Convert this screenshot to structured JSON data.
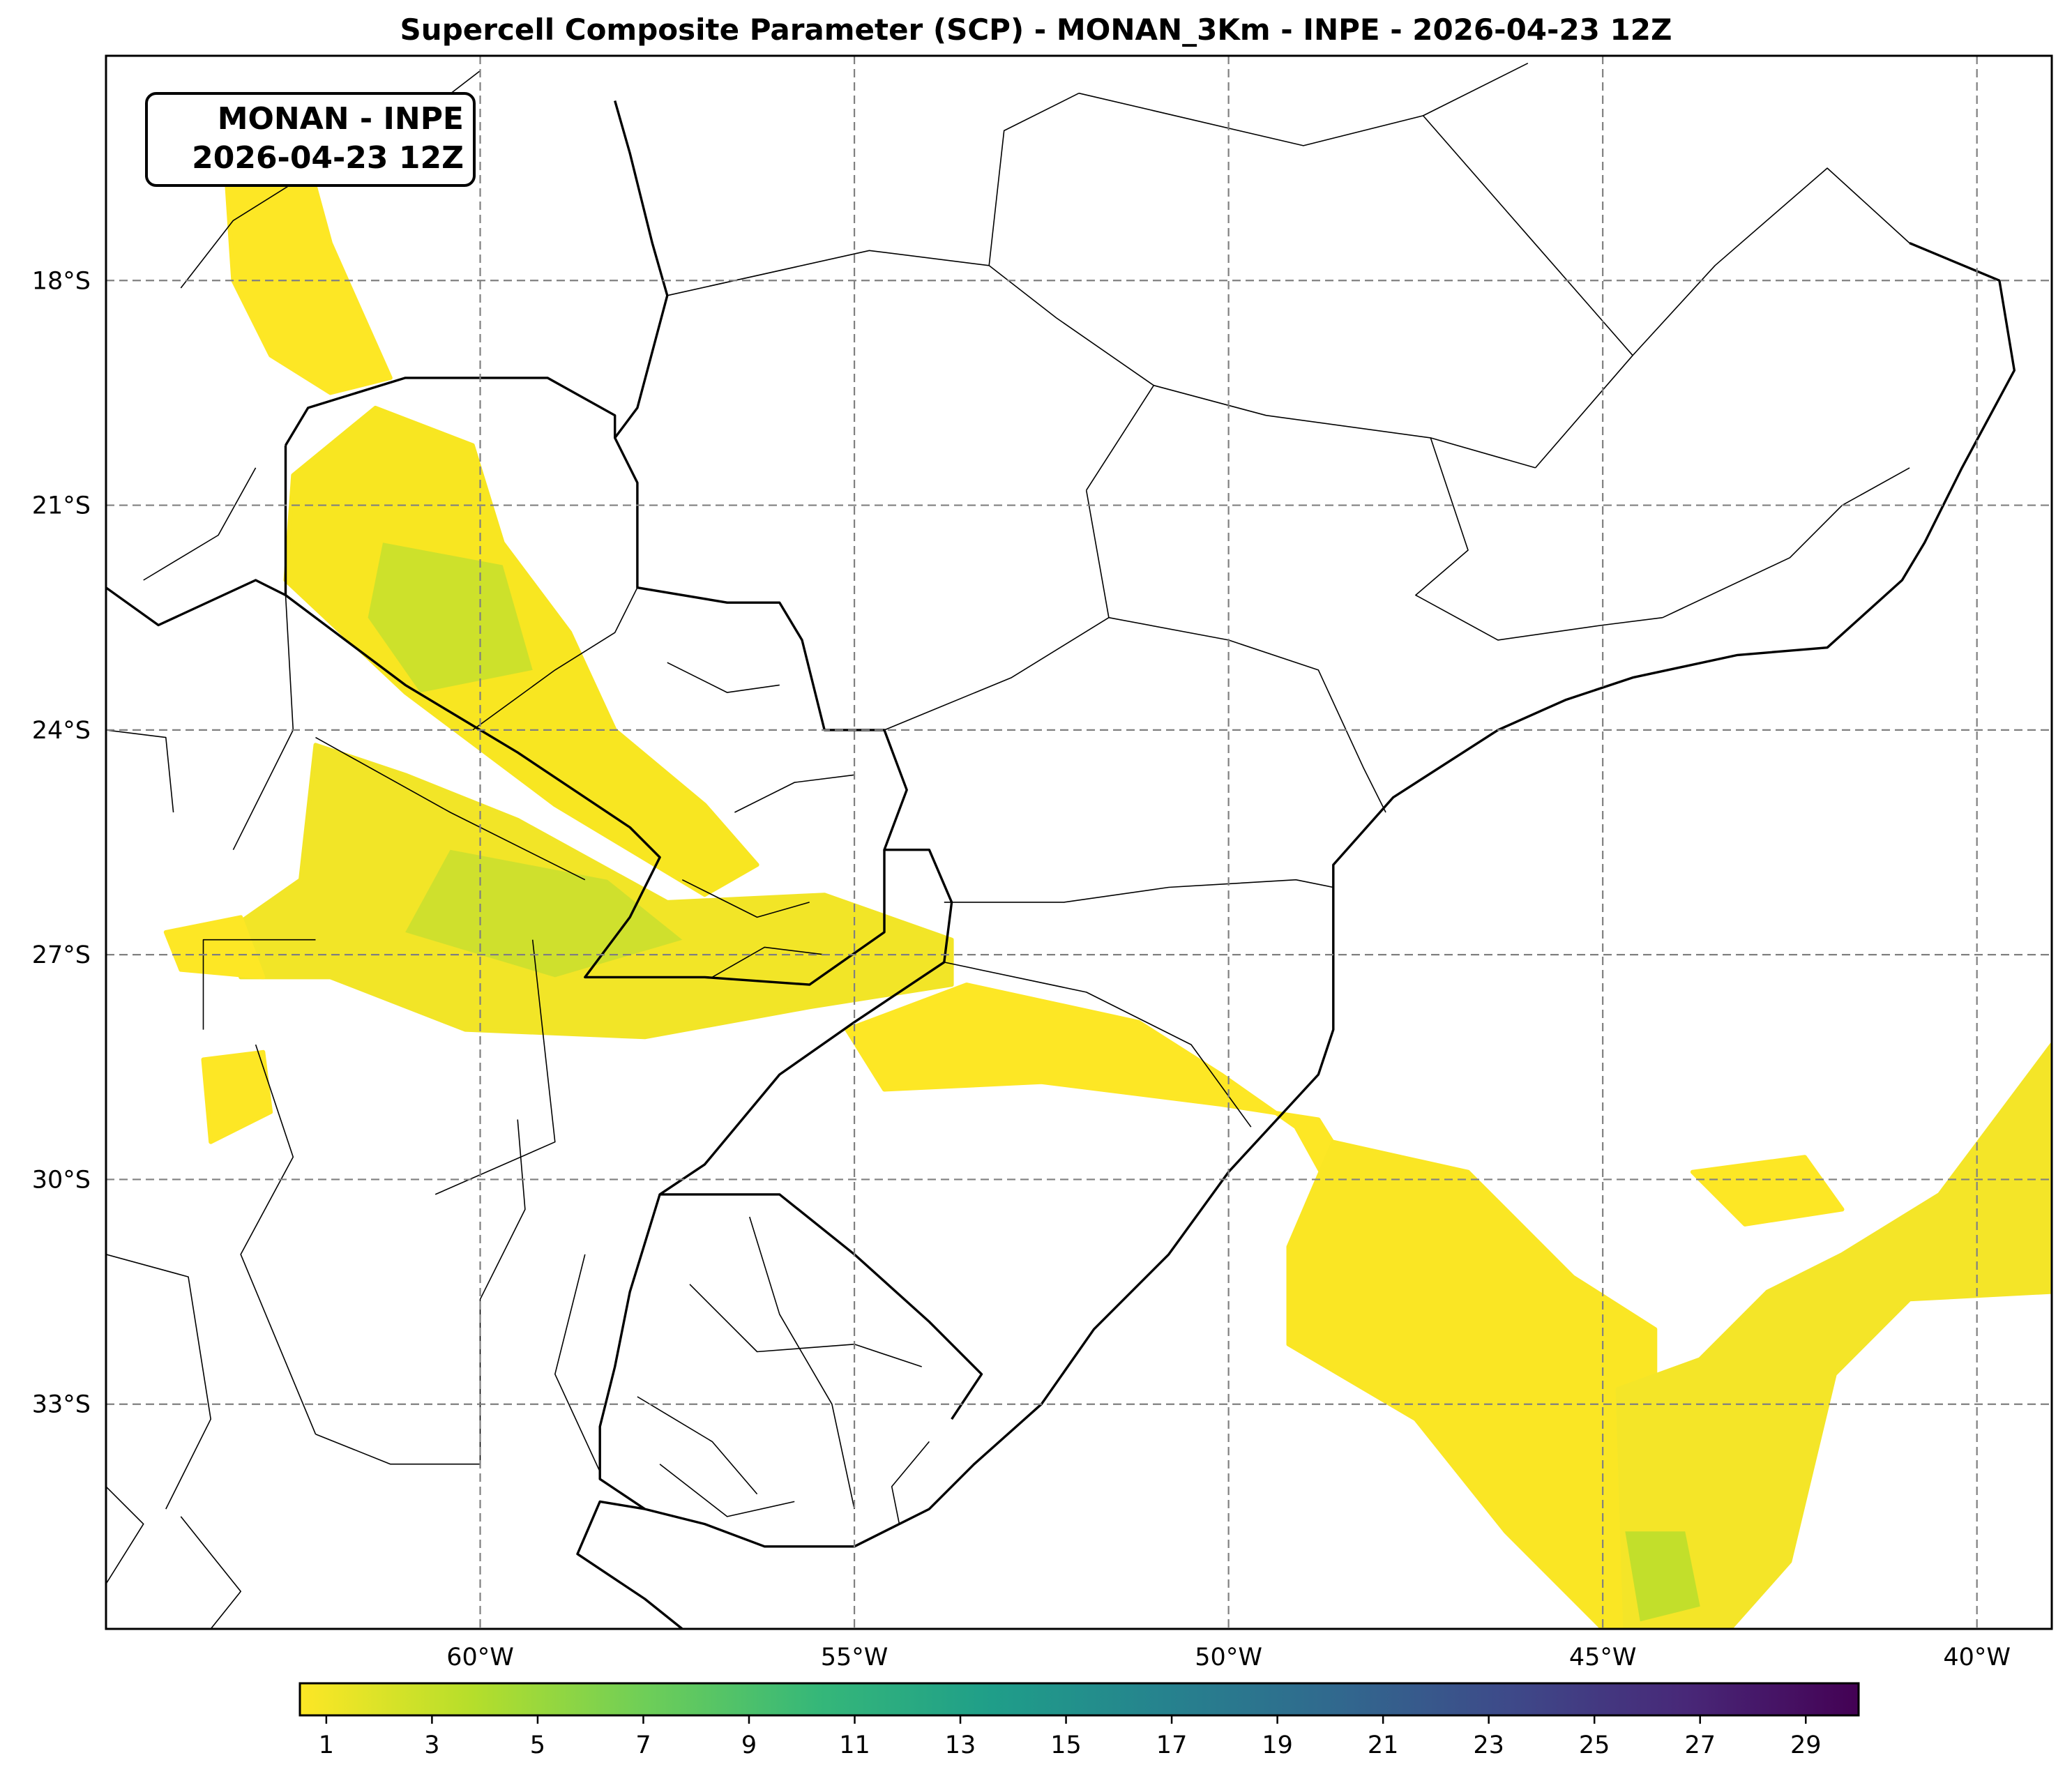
{
  "title": "Supercell Composite Parameter (SCP) - MONAN_3Km - INPE - 2026-04-23 12Z",
  "info_box": {
    "line1": "MONAN - INPE",
    "line2": "2026-04-23 12Z"
  },
  "map": {
    "projection": "plate-carree",
    "lon_range": [
      -65,
      -39
    ],
    "lat_range": [
      -36,
      -15
    ],
    "gridlines": "dashed",
    "lon_ticks": [
      {
        "value": -60,
        "label": "60°W"
      },
      {
        "value": -55,
        "label": "55°W"
      },
      {
        "value": -50,
        "label": "50°W"
      },
      {
        "value": -45,
        "label": "45°W"
      },
      {
        "value": -40,
        "label": "40°W"
      }
    ],
    "lat_ticks": [
      {
        "value": -18,
        "label": "18°S"
      },
      {
        "value": -21,
        "label": "21°S"
      },
      {
        "value": -24,
        "label": "24°S"
      },
      {
        "value": -27,
        "label": "27°S"
      },
      {
        "value": -30,
        "label": "30°S"
      },
      {
        "value": -33,
        "label": "33°S"
      }
    ]
  },
  "colorbar": {
    "colormap": "viridis_r",
    "min": 0.5,
    "max": 30,
    "colors": [
      "#fde725",
      "#b5de2b",
      "#6ece58",
      "#35b779",
      "#1f9e89",
      "#26828e",
      "#31688e",
      "#3e4989",
      "#482878",
      "#440154"
    ],
    "ticks": [
      "1",
      "3",
      "5",
      "7",
      "9",
      "11",
      "13",
      "15",
      "17",
      "19",
      "21",
      "23",
      "25",
      "27",
      "29"
    ]
  },
  "scp_regions": [
    {
      "name": "chaco-north",
      "color": "#fde725",
      "points": [
        [
          -63.4,
          -16.5
        ],
        [
          -62.3,
          -16.4
        ],
        [
          -62.0,
          -17.5
        ],
        [
          -61.6,
          -18.4
        ],
        [
          -61.2,
          -19.3
        ],
        [
          -62.0,
          -19.5
        ],
        [
          -62.8,
          -19.0
        ],
        [
          -63.3,
          -18.0
        ]
      ]
    },
    {
      "name": "paraguay-northwest",
      "color": "#f8e621",
      "points": [
        [
          -61.4,
          -19.7
        ],
        [
          -60.1,
          -20.2
        ],
        [
          -59.7,
          -21.5
        ],
        [
          -58.8,
          -22.7
        ],
        [
          -58.2,
          -24.0
        ],
        [
          -57.0,
          -25.0
        ],
        [
          -56.3,
          -25.8
        ],
        [
          -57.0,
          -26.2
        ],
        [
          -59.0,
          -25.0
        ],
        [
          -61.0,
          -23.5
        ],
        [
          -62.6,
          -22.0
        ],
        [
          -62.5,
          -20.6
        ]
      ]
    },
    {
      "name": "argentina-northeast",
      "color": "#f2e527",
      "points": [
        [
          -62.2,
          -24.2
        ],
        [
          -61.0,
          -24.6
        ],
        [
          -59.5,
          -25.2
        ],
        [
          -57.5,
          -26.3
        ],
        [
          -55.4,
          -26.2
        ],
        [
          -53.7,
          -26.8
        ],
        [
          -53.7,
          -27.4
        ],
        [
          -55.6,
          -27.7
        ],
        [
          -57.8,
          -28.1
        ],
        [
          -60.2,
          -28.0
        ],
        [
          -62.0,
          -27.3
        ],
        [
          -63.2,
          -27.3
        ],
        [
          -63.4,
          -26.7
        ],
        [
          -62.4,
          -26.0
        ]
      ]
    },
    {
      "name": "rio-grande-do-sul-north",
      "color": "#fde725",
      "points": [
        [
          -55.1,
          -28.0
        ],
        [
          -53.5,
          -27.4
        ],
        [
          -51.2,
          -27.9
        ],
        [
          -50.1,
          -28.6
        ],
        [
          -49.1,
          -29.3
        ],
        [
          -48.6,
          -30.2
        ],
        [
          -47.8,
          -30.8
        ],
        [
          -48.8,
          -29.2
        ],
        [
          -50.1,
          -29.0
        ],
        [
          -52.5,
          -28.7
        ],
        [
          -54.6,
          -28.8
        ]
      ]
    },
    {
      "name": "atlantic-southwest-band",
      "color": "#fae624",
      "points": [
        [
          -48.6,
          -29.5
        ],
        [
          -46.8,
          -29.9
        ],
        [
          -45.4,
          -31.3
        ],
        [
          -44.3,
          -32.0
        ],
        [
          -44.3,
          -34.3
        ],
        [
          -44.0,
          -36.0
        ],
        [
          -45.0,
          -36.0
        ],
        [
          -46.3,
          -34.7
        ],
        [
          -47.5,
          -33.2
        ],
        [
          -49.2,
          -32.2
        ],
        [
          -49.2,
          -30.9
        ]
      ]
    },
    {
      "name": "atlantic-offshore-core",
      "color": "#f4e528",
      "points": [
        [
          -44.8,
          -32.8
        ],
        [
          -43.7,
          -32.4
        ],
        [
          -42.8,
          -31.5
        ],
        [
          -41.8,
          -31.0
        ],
        [
          -40.5,
          -30.2
        ],
        [
          -39.0,
          -28.2
        ],
        [
          -39.0,
          -31.5
        ],
        [
          -40.9,
          -31.6
        ],
        [
          -41.9,
          -32.6
        ],
        [
          -42.5,
          -35.1
        ],
        [
          -43.3,
          -36.0
        ],
        [
          -44.7,
          -36.0
        ]
      ]
    },
    {
      "name": "atlantic-east-cells",
      "color": "#fde725",
      "points": [
        [
          -43.8,
          -29.9
        ],
        [
          -42.3,
          -29.7
        ],
        [
          -41.8,
          -30.4
        ],
        [
          -43.1,
          -30.6
        ]
      ]
    },
    {
      "name": "argentina-chaco-south",
      "color": "#fde725",
      "points": [
        [
          -63.7,
          -28.4
        ],
        [
          -62.9,
          -28.3
        ],
        [
          -62.8,
          -29.1
        ],
        [
          -63.6,
          -29.5
        ]
      ]
    },
    {
      "name": "argentina-chaco-west",
      "color": "#fde725",
      "points": [
        [
          -64.2,
          -26.7
        ],
        [
          -63.2,
          -26.5
        ],
        [
          -62.9,
          -27.3
        ],
        [
          -64.0,
          -27.2
        ]
      ]
    }
  ],
  "scp_hotspots": [
    {
      "name": "paraguay-core",
      "color": "#c5df2d",
      "points": [
        [
          -61.3,
          -21.5
        ],
        [
          -59.7,
          -21.8
        ],
        [
          -59.3,
          -23.2
        ],
        [
          -60.8,
          -23.5
        ],
        [
          -61.5,
          -22.5
        ]
      ]
    },
    {
      "name": "chaco-core",
      "color": "#c9df2f",
      "points": [
        [
          -60.4,
          -25.6
        ],
        [
          -58.3,
          -26.0
        ],
        [
          -57.3,
          -26.8
        ],
        [
          -59.0,
          -27.3
        ],
        [
          -61.0,
          -26.7
        ]
      ]
    },
    {
      "name": "ocean-core",
      "color": "#b8de2c",
      "points": [
        [
          -44.7,
          -34.7
        ],
        [
          -43.9,
          -34.7
        ],
        [
          -43.7,
          -35.7
        ],
        [
          -44.5,
          -35.9
        ]
      ]
    }
  ],
  "boundaries": {
    "coast_brazil": [
      [
        -40.9,
        -17.5
      ],
      [
        -39.7,
        -18.0
      ],
      [
        -39.5,
        -19.2
      ],
      [
        -40.2,
        -20.5
      ],
      [
        -40.7,
        -21.5
      ],
      [
        -41.0,
        -22.0
      ],
      [
        -42.0,
        -22.9
      ],
      [
        -43.2,
        -23.0
      ],
      [
        -44.6,
        -23.3
      ],
      [
        -45.5,
        -23.6
      ],
      [
        -46.4,
        -24.0
      ],
      [
        -47.8,
        -24.9
      ],
      [
        -48.6,
        -25.8
      ],
      [
        -48.6,
        -26.8
      ],
      [
        -48.6,
        -28.0
      ],
      [
        -48.8,
        -28.6
      ],
      [
        -50.0,
        -29.9
      ],
      [
        -50.8,
        -31.0
      ],
      [
        -51.8,
        -32.0
      ],
      [
        -52.5,
        -33.0
      ],
      [
        -53.4,
        -33.8
      ],
      [
        -54.0,
        -34.4
      ],
      [
        -55.0,
        -34.9
      ],
      [
        -56.2,
        -34.9
      ],
      [
        -57.0,
        -34.6
      ],
      [
        -57.8,
        -34.4
      ],
      [
        -58.4,
        -34.3
      ],
      [
        -58.7,
        -35.0
      ],
      [
        -57.8,
        -35.6
      ],
      [
        -57.3,
        -36.0
      ]
    ],
    "brazil_border": [
      [
        -58.2,
        -15.6
      ],
      [
        -58.0,
        -16.3
      ],
      [
        -57.7,
        -17.5
      ],
      [
        -57.5,
        -18.2
      ],
      [
        -57.9,
        -19.7
      ],
      [
        -58.2,
        -20.1
      ],
      [
        -57.9,
        -20.7
      ],
      [
        -57.9,
        -21.5
      ],
      [
        -57.9,
        -22.1
      ],
      [
        -56.7,
        -22.3
      ],
      [
        -56.0,
        -22.3
      ],
      [
        -55.7,
        -22.8
      ],
      [
        -55.4,
        -24.0
      ],
      [
        -54.6,
        -24.0
      ],
      [
        -54.3,
        -24.8
      ],
      [
        -54.6,
        -25.6
      ],
      [
        -54.0,
        -25.6
      ],
      [
        -53.7,
        -26.3
      ],
      [
        -53.8,
        -27.1
      ],
      [
        -55.0,
        -27.9
      ],
      [
        -56.0,
        -28.6
      ],
      [
        -57.0,
        -29.8
      ],
      [
        -57.6,
        -30.2
      ],
      [
        -56.0,
        -30.2
      ],
      [
        -55.0,
        -31.0
      ],
      [
        -54.0,
        -31.9
      ],
      [
        -53.3,
        -32.6
      ],
      [
        -53.7,
        -33.2
      ]
    ],
    "bolivia_paraguay": [
      [
        -62.6,
        -20.2
      ],
      [
        -62.3,
        -19.7
      ],
      [
        -61.0,
        -19.3
      ],
      [
        -59.1,
        -19.3
      ],
      [
        -58.2,
        -19.8
      ],
      [
        -58.2,
        -20.1
      ]
    ],
    "paraguay_argentina": [
      [
        -62.6,
        -22.2
      ],
      [
        -61.0,
        -23.4
      ],
      [
        -59.5,
        -24.3
      ],
      [
        -58.0,
        -25.3
      ],
      [
        -57.6,
        -25.7
      ],
      [
        -58.0,
        -26.5
      ],
      [
        -58.6,
        -27.3
      ],
      [
        -57.0,
        -27.3
      ],
      [
        -55.6,
        -27.4
      ],
      [
        -54.6,
        -26.7
      ],
      [
        -54.6,
        -25.6
      ]
    ],
    "bolivia_argentina": [
      [
        -65.0,
        -22.1
      ],
      [
        -64.3,
        -22.6
      ],
      [
        -63.0,
        -22.0
      ],
      [
        -62.6,
        -22.2
      ],
      [
        -62.6,
        -20.2
      ]
    ],
    "uruguay_argentina": [
      [
        -57.6,
        -30.2
      ],
      [
        -58.0,
        -31.5
      ],
      [
        -58.2,
        -32.5
      ],
      [
        -58.4,
        -33.3
      ],
      [
        -58.4,
        -34.0
      ],
      [
        -57.8,
        -34.4
      ]
    ],
    "state_lines": [
      [
        [
          -57.5,
          -18.2
        ],
        [
          -54.8,
          -17.6
        ],
        [
          -53.2,
          -17.8
        ],
        [
          -52.3,
          -18.5
        ],
        [
          -51.0,
          -19.4
        ],
        [
          -51.9,
          -20.8
        ]
      ],
      [
        [
          -53.2,
          -17.8
        ],
        [
          -53.0,
          -16.0
        ],
        [
          -52.0,
          -15.5
        ]
      ],
      [
        [
          -51.0,
          -19.4
        ],
        [
          -49.5,
          -19.8
        ],
        [
          -47.3,
          -20.1
        ],
        [
          -45.9,
          -20.5
        ]
      ],
      [
        [
          -51.9,
          -20.8
        ],
        [
          -51.6,
          -22.5
        ],
        [
          -52.9,
          -23.3
        ],
        [
          -54.6,
          -24.0
        ]
      ],
      [
        [
          -51.6,
          -22.5
        ],
        [
          -50.0,
          -22.8
        ],
        [
          -48.8,
          -23.2
        ],
        [
          -48.2,
          -24.5
        ],
        [
          -47.9,
          -25.1
        ]
      ],
      [
        [
          -53.8,
          -26.3
        ],
        [
          -52.2,
          -26.3
        ],
        [
          -50.8,
          -26.1
        ],
        [
          -49.1,
          -26.0
        ],
        [
          -48.6,
          -26.1
        ]
      ],
      [
        [
          -53.8,
          -27.1
        ],
        [
          -51.9,
          -27.5
        ],
        [
          -50.5,
          -28.2
        ],
        [
          -49.7,
          -29.3
        ]
      ],
      [
        [
          -47.3,
          -20.1
        ],
        [
          -46.8,
          -21.6
        ],
        [
          -47.5,
          -22.2
        ],
        [
          -46.4,
          -22.8
        ],
        [
          -45.0,
          -22.6
        ],
        [
          -44.2,
          -22.5
        ]
      ],
      [
        [
          -44.2,
          -22.5
        ],
        [
          -42.5,
          -21.7
        ],
        [
          -41.8,
          -21.0
        ],
        [
          -40.9,
          -20.5
        ]
      ],
      [
        [
          -45.9,
          -20.5
        ],
        [
          -44.6,
          -19.0
        ],
        [
          -43.5,
          -17.8
        ],
        [
          -42.0,
          -16.5
        ],
        [
          -40.9,
          -17.5
        ]
      ],
      [
        [
          -44.6,
          -19.0
        ],
        [
          -46.0,
          -17.4
        ],
        [
          -47.4,
          -15.8
        ]
      ],
      [
        [
          -52.0,
          -15.5
        ],
        [
          -49.0,
          -16.2
        ],
        [
          -47.4,
          -15.8
        ],
        [
          -46.0,
          -15.1
        ]
      ],
      [
        [
          -60.0,
          -15.2
        ],
        [
          -61.3,
          -16.2
        ],
        [
          -62.1,
          -16.6
        ]
      ],
      [
        [
          -63.0,
          -20.5
        ],
        [
          -63.5,
          -21.4
        ],
        [
          -64.5,
          -22.0
        ]
      ],
      [
        [
          -62.6,
          -22.2
        ],
        [
          -62.5,
          -24.0
        ],
        [
          -63.3,
          -25.6
        ]
      ],
      [
        [
          -62.2,
          -24.1
        ],
        [
          -60.4,
          -25.1
        ],
        [
          -58.6,
          -26.0
        ]
      ],
      [
        [
          -60.1,
          -24.0
        ],
        [
          -59.0,
          -23.2
        ],
        [
          -58.2,
          -22.7
        ],
        [
          -57.9,
          -22.1
        ]
      ],
      [
        [
          -59.3,
          -26.8
        ],
        [
          -59.0,
          -29.5
        ],
        [
          -60.6,
          -30.2
        ]
      ],
      [
        [
          -62.2,
          -26.8
        ],
        [
          -63.7,
          -26.8
        ],
        [
          -63.7,
          -28.0
        ]
      ],
      [
        [
          -63.0,
          -28.2
        ],
        [
          -62.5,
          -29.7
        ],
        [
          -63.2,
          -31.0
        ],
        [
          -62.2,
          -33.4
        ]
      ],
      [
        [
          -59.5,
          -29.2
        ],
        [
          -59.4,
          -30.4
        ],
        [
          -60.0,
          -31.6
        ],
        [
          -60.0,
          -33.8
        ]
      ],
      [
        [
          -58.6,
          -31.0
        ],
        [
          -59.0,
          -32.6
        ],
        [
          -58.4,
          -33.9
        ]
      ],
      [
        [
          -64.0,
          -34.5
        ],
        [
          -63.6,
          -35.0
        ],
        [
          -63.2,
          -35.5
        ],
        [
          -63.6,
          -36.0
        ]
      ],
      [
        [
          -62.2,
          -33.4
        ],
        [
          -61.2,
          -33.8
        ],
        [
          -60.0,
          -33.8
        ]
      ],
      [
        [
          -56.4,
          -30.5
        ],
        [
          -56.0,
          -31.8
        ],
        [
          -55.3,
          -33.0
        ],
        [
          -55.0,
          -34.4
        ]
      ],
      [
        [
          -57.2,
          -31.4
        ],
        [
          -56.3,
          -32.3
        ],
        [
          -55.0,
          -32.2
        ],
        [
          -54.1,
          -32.5
        ]
      ],
      [
        [
          -57.9,
          -32.9
        ],
        [
          -56.9,
          -33.5
        ],
        [
          -56.3,
          -34.2
        ]
      ],
      [
        [
          -57.6,
          -33.8
        ],
        [
          -56.7,
          -34.5
        ],
        [
          -55.8,
          -34.3
        ]
      ],
      [
        [
          -54.0,
          -33.5
        ],
        [
          -54.5,
          -34.1
        ],
        [
          -54.4,
          -34.6
        ]
      ],
      [
        [
          -56.6,
          -25.1
        ],
        [
          -55.8,
          -24.7
        ],
        [
          -55.0,
          -24.6
        ]
      ],
      [
        [
          -57.3,
          -26.0
        ],
        [
          -56.3,
          -26.5
        ],
        [
          -55.6,
          -26.3
        ]
      ],
      [
        [
          -56.9,
          -27.3
        ],
        [
          -56.2,
          -26.9
        ],
        [
          -55.4,
          -27.0
        ]
      ],
      [
        [
          -57.5,
          -23.1
        ],
        [
          -56.7,
          -23.5
        ],
        [
          -56.0,
          -23.4
        ]
      ],
      [
        [
          -64.0,
          -18.1
        ],
        [
          -63.3,
          -17.2
        ],
        [
          -62.5,
          -16.7
        ]
      ],
      [
        [
          -65.0,
          -24.0
        ],
        [
          -64.2,
          -24.1
        ],
        [
          -64.1,
          -25.1
        ]
      ],
      [
        [
          -65.0,
          -31.0
        ],
        [
          -63.9,
          -31.3
        ],
        [
          -63.6,
          -33.2
        ],
        [
          -64.2,
          -34.4
        ]
      ],
      [
        [
          -65.0,
          -34.1
        ],
        [
          -64.5,
          -34.6
        ],
        [
          -65.0,
          -35.4
        ]
      ]
    ]
  }
}
